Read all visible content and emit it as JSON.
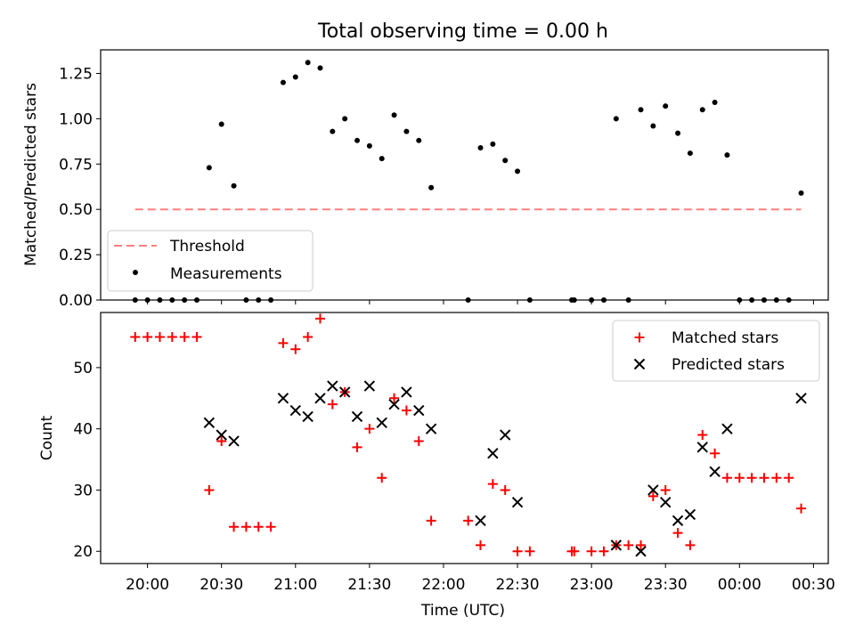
{
  "title": "Total observing time = 0.00 h",
  "xlabel": "Time (UTC)",
  "x_ticks": [
    "20:00",
    "20:30",
    "21:00",
    "21:30",
    "22:00",
    "22:30",
    "23:00",
    "23:30",
    "00:00",
    "00:30"
  ],
  "chart_data": [
    {
      "type": "scatter",
      "panel": "top",
      "ylabel": "Matched/Predicted stars",
      "xlim": [
        "19:41",
        "00:36"
      ],
      "ylim": [
        0,
        1.38
      ],
      "y_ticks": [
        "0.00",
        "0.25",
        "0.50",
        "0.75",
        "1.00",
        "1.25"
      ],
      "legend_position": "lower-left",
      "threshold": {
        "name": "Threshold",
        "x": [
          "19:55",
          "00:25"
        ],
        "y": 0.5,
        "color": "#ff7f7f"
      },
      "series": [
        {
          "name": "Measurements",
          "color": "#000000",
          "x": [
            "19:55",
            "20:00",
            "20:05",
            "20:10",
            "20:15",
            "20:20",
            "20:25",
            "20:30",
            "20:35",
            "20:40",
            "20:45",
            "20:50",
            "20:55",
            "21:00",
            "21:05",
            "21:10",
            "21:15",
            "21:20",
            "21:25",
            "21:30",
            "21:35",
            "21:40",
            "21:45",
            "21:50",
            "21:55",
            "22:10",
            "22:15",
            "22:20",
            "22:25",
            "22:30",
            "22:35",
            "22:52",
            "22:53",
            "23:00",
            "23:05",
            "23:10",
            "23:15",
            "23:20",
            "23:25",
            "23:30",
            "23:35",
            "23:40",
            "23:45",
            "23:50",
            "23:55",
            "00:00",
            "00:05",
            "00:10",
            "00:15",
            "00:20",
            "00:25"
          ],
          "y": [
            0,
            0,
            0,
            0,
            0,
            0,
            0.73,
            0.97,
            0.63,
            0,
            0,
            0,
            1.2,
            1.23,
            1.31,
            1.28,
            0.93,
            1.0,
            0.88,
            0.85,
            0.78,
            1.02,
            0.93,
            0.88,
            0.62,
            0,
            0.84,
            0.86,
            0.77,
            0.71,
            0,
            0,
            0,
            0,
            0,
            1.0,
            0,
            1.05,
            0.96,
            1.07,
            0.92,
            0.81,
            1.05,
            1.09,
            0.8,
            0,
            0,
            0,
            0,
            0,
            0.59
          ]
        }
      ]
    },
    {
      "type": "scatter",
      "panel": "bottom",
      "ylabel": "Count",
      "xlim": [
        "19:41",
        "00:36"
      ],
      "ylim": [
        18,
        59
      ],
      "y_ticks": [
        "20",
        "30",
        "40",
        "50"
      ],
      "legend_position": "upper-right",
      "series": [
        {
          "name": "Matched stars",
          "marker": "plus",
          "color": "#ff0000",
          "x": [
            "19:55",
            "20:00",
            "20:05",
            "20:10",
            "20:15",
            "20:20",
            "20:25",
            "20:30",
            "20:35",
            "20:40",
            "20:45",
            "20:50",
            "20:55",
            "21:00",
            "21:05",
            "21:10",
            "21:15",
            "21:20",
            "21:25",
            "21:30",
            "21:35",
            "21:40",
            "21:45",
            "21:50",
            "21:55",
            "22:10",
            "22:15",
            "22:20",
            "22:25",
            "22:30",
            "22:35",
            "22:52",
            "22:53",
            "23:00",
            "23:05",
            "23:10",
            "23:15",
            "23:20",
            "23:25",
            "23:30",
            "23:35",
            "23:40",
            "23:45",
            "23:50",
            "23:55",
            "00:00",
            "00:05",
            "00:10",
            "00:15",
            "00:20",
            "00:25"
          ],
          "y": [
            55,
            55,
            55,
            55,
            55,
            55,
            30,
            38,
            24,
            24,
            24,
            24,
            54,
            53,
            55,
            58,
            44,
            46,
            37,
            40,
            32,
            45,
            43,
            38,
            25,
            25,
            21,
            31,
            30,
            20,
            20,
            20,
            20,
            20,
            20,
            21,
            21,
            21,
            29,
            30,
            23,
            21,
            39,
            36,
            32,
            32,
            32,
            32,
            32,
            32,
            27
          ]
        },
        {
          "name": "Predicted stars",
          "marker": "x",
          "color": "#000000",
          "x": [
            "20:25",
            "20:30",
            "20:35",
            "20:55",
            "21:00",
            "21:05",
            "21:10",
            "21:15",
            "21:20",
            "21:25",
            "21:30",
            "21:35",
            "21:40",
            "21:45",
            "21:50",
            "21:55",
            "22:15",
            "22:20",
            "22:25",
            "22:30",
            "23:10",
            "23:20",
            "23:25",
            "23:30",
            "23:35",
            "23:40",
            "23:45",
            "23:50",
            "23:55",
            "00:25"
          ],
          "y": [
            41,
            39,
            38,
            45,
            43,
            42,
            45,
            47,
            46,
            42,
            47,
            41,
            44,
            46,
            43,
            40,
            25,
            36,
            39,
            28,
            21,
            20,
            30,
            28,
            25,
            26,
            37,
            33,
            40,
            45
          ]
        }
      ]
    }
  ]
}
